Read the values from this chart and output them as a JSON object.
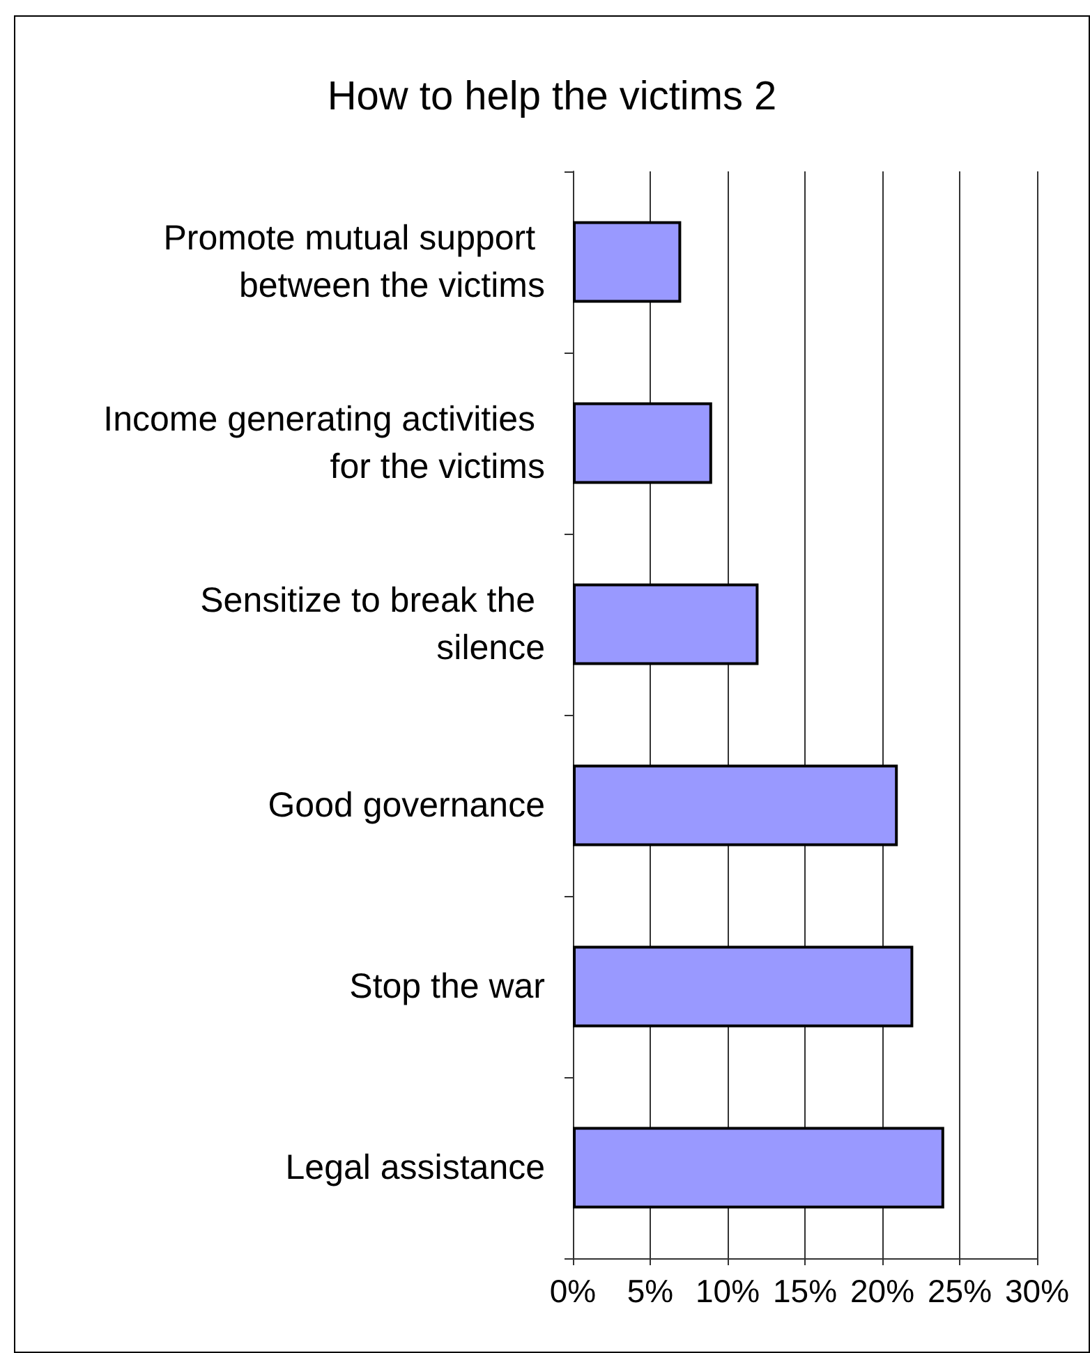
{
  "chart_data": {
    "type": "bar",
    "orientation": "horizontal",
    "title": "How to help the victims 2",
    "categories": [
      "Promote mutual support between the victims",
      "Income generating activities for the victims",
      "Sensitize to break the silence",
      "Good governance",
      "Stop the war",
      "Legal assistance"
    ],
    "values": [
      7,
      9,
      12,
      21,
      22,
      24
    ],
    "color": "#9999ff",
    "xlim": [
      0,
      30
    ],
    "xticks": [
      {
        "value": 0,
        "label": "0%"
      },
      {
        "value": 5,
        "label": "5%"
      },
      {
        "value": 10,
        "label": "10%"
      },
      {
        "value": 15,
        "label": "15%"
      },
      {
        "value": 20,
        "label": "20%"
      },
      {
        "value": 25,
        "label": "25%"
      },
      {
        "value": 30,
        "label": "30%"
      }
    ],
    "grid": "x"
  }
}
